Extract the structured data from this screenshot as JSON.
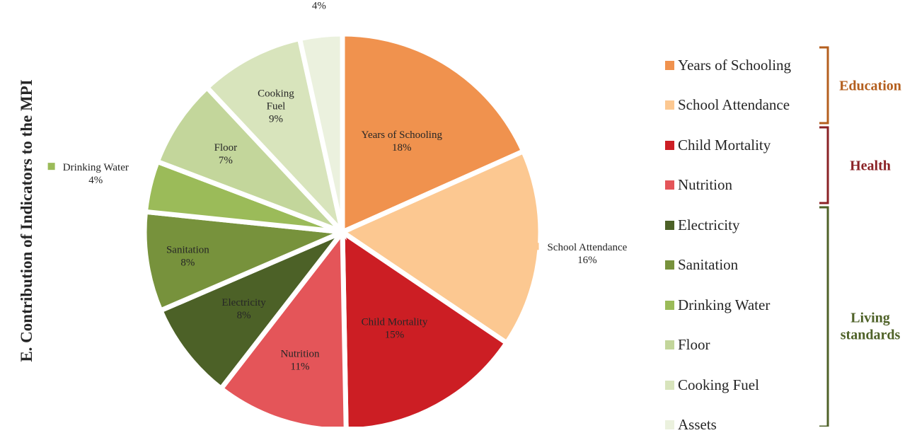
{
  "chart_data": {
    "type": "pie",
    "ylabel": "E. Contribution of Indicators to the MPI",
    "slices": [
      {
        "name": "Years of Schooling",
        "pct_label": "18%",
        "value": 18.5,
        "color": "#f0924e",
        "group": "Education"
      },
      {
        "name": "School Attendance",
        "pct_label": "16%",
        "value": 16.3,
        "color": "#fcc891",
        "group": "Education"
      },
      {
        "name": "Child Mortality",
        "pct_label": "15%",
        "value": 15.4,
        "color": "#cc1e24",
        "group": "Health"
      },
      {
        "name": "Nutrition",
        "pct_label": "11%",
        "value": 10.9,
        "color": "#e45559",
        "group": "Health"
      },
      {
        "name": "Electricity",
        "pct_label": "8%",
        "value": 8.1,
        "color": "#4c6127",
        "group": "Living standards"
      },
      {
        "name": "Sanitation",
        "pct_label": "8%",
        "value": 8.2,
        "color": "#77923c",
        "group": "Living standards"
      },
      {
        "name": "Drinking Water",
        "pct_label": "4%",
        "value": 4.2,
        "color": "#9bbb59",
        "group": "Living standards"
      },
      {
        "name": "Floor",
        "pct_label": "7%",
        "value": 7.3,
        "color": "#c3d69b",
        "group": "Living standards"
      },
      {
        "name": "Cooking Fuel",
        "pct_label": "9%",
        "value": 8.6,
        "color": "#d8e4bc",
        "group": "Living standards"
      },
      {
        "name": "Assets",
        "pct_label": "4%",
        "value": 3.5,
        "color": "#ebf1de",
        "group": "Living standards"
      }
    ],
    "groups": [
      {
        "name": "Education",
        "color": "#b45f1e"
      },
      {
        "name": "Health",
        "color": "#8b2226"
      },
      {
        "name": "Living standards",
        "color": "#4f6228"
      }
    ],
    "legend_position": "right"
  }
}
